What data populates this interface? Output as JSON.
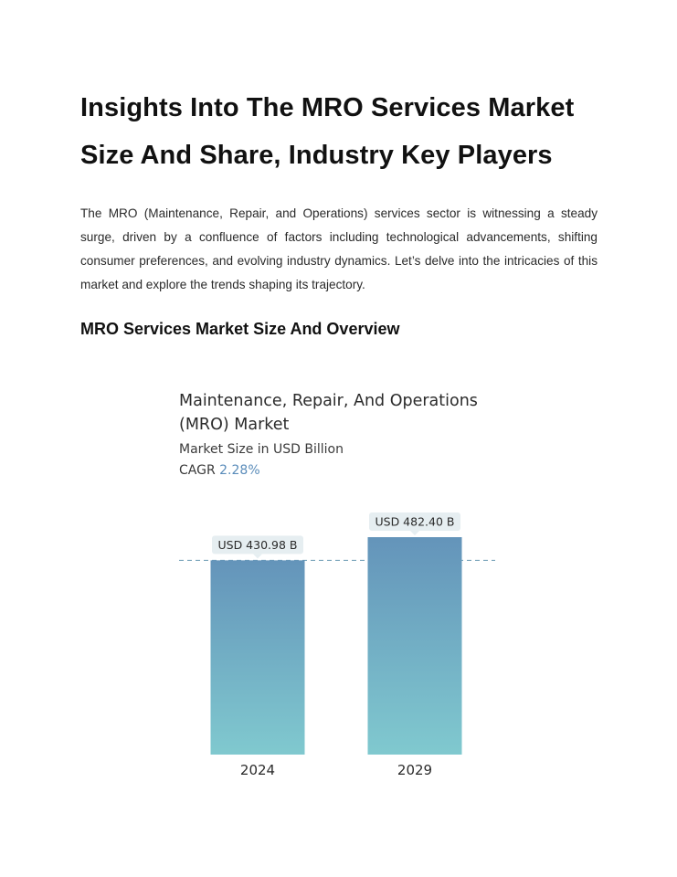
{
  "document": {
    "title": "Insights Into The MRO Services Market Size And Share, Industry Key Players",
    "intro": "The MRO (Maintenance, Repair, and Operations) services sector is witnessing a steady surge, driven by a confluence of factors including technological advancements, shifting consumer preferences, and evolving industry dynamics. Let’s delve into the intricacies of this market and explore the trends shaping its trajectory.",
    "section_heading": "MRO Services Market Size And Overview"
  },
  "infographic": {
    "cagr_label": "CAGR",
    "cagr_value": "2.28%"
  },
  "colors": {
    "bar_top": "#6494ba",
    "bar_bottom": "#80c9cf",
    "label_box": "#e6eef1",
    "dashed_line": "#6a9ab3",
    "cagr_accent": "#5a8cba"
  },
  "chart_data": {
    "type": "bar",
    "title": "Maintenance, Repair, And Operations (MRO) Market",
    "subtitle": "Market Size in USD Billion",
    "categories": [
      "2024",
      "2029"
    ],
    "values": [
      430.98,
      482.4
    ],
    "value_labels": [
      "USD 430.98 B",
      "USD 482.40 B"
    ],
    "reference_line": 430.98,
    "ylim": [
      0,
      482.4
    ],
    "grid": false,
    "legend": "none"
  }
}
